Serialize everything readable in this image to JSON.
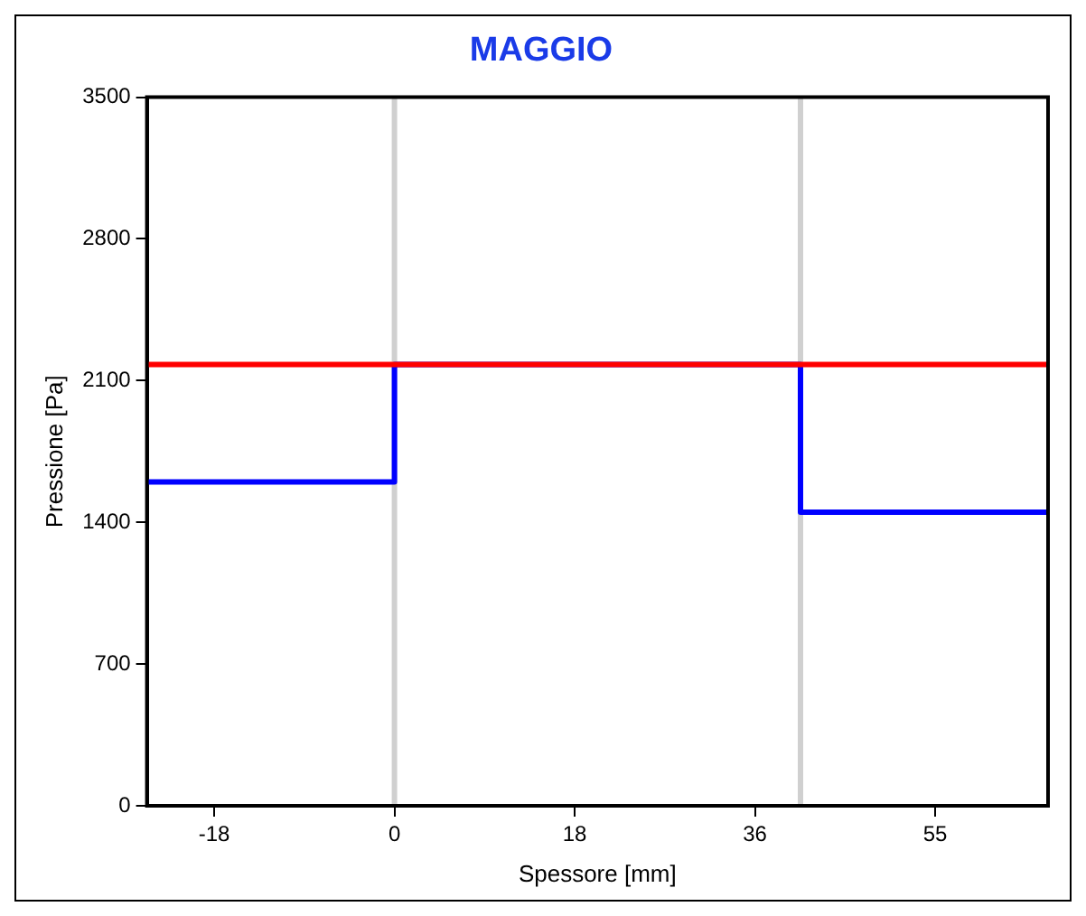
{
  "chart_data": {
    "type": "line",
    "title": "MAGGIO",
    "xlabel": "Spessore [mm]",
    "ylabel": "Pressione [Pa]",
    "xlim": [
      -25,
      66
    ],
    "ylim": [
      0,
      3500
    ],
    "xticks": [
      {
        "value": -18.2,
        "label": "-18"
      },
      {
        "value": 0,
        "label": "0"
      },
      {
        "value": 18.2,
        "label": "18"
      },
      {
        "value": 36.4,
        "label": "36"
      },
      {
        "value": 54.6,
        "label": "55"
      }
    ],
    "yticks": [
      0,
      700,
      1400,
      2100,
      2800,
      3500
    ],
    "series": [
      {
        "color": "#ff0000",
        "x": [
          -25,
          66
        ],
        "values": [
          2180,
          2180
        ]
      },
      {
        "color": "#0000ff",
        "x": [
          -25,
          0,
          0,
          41,
          41,
          66
        ],
        "values": [
          1600,
          1600,
          2180,
          2180,
          1450,
          1450
        ]
      }
    ],
    "ref_lines": [
      {
        "axis": "x",
        "value": 0,
        "color": "#d0d0d0"
      },
      {
        "axis": "x",
        "value": 41,
        "color": "#d0d0d0"
      }
    ],
    "grid": false,
    "legend": false,
    "marker": "none",
    "line_style": "solid"
  }
}
